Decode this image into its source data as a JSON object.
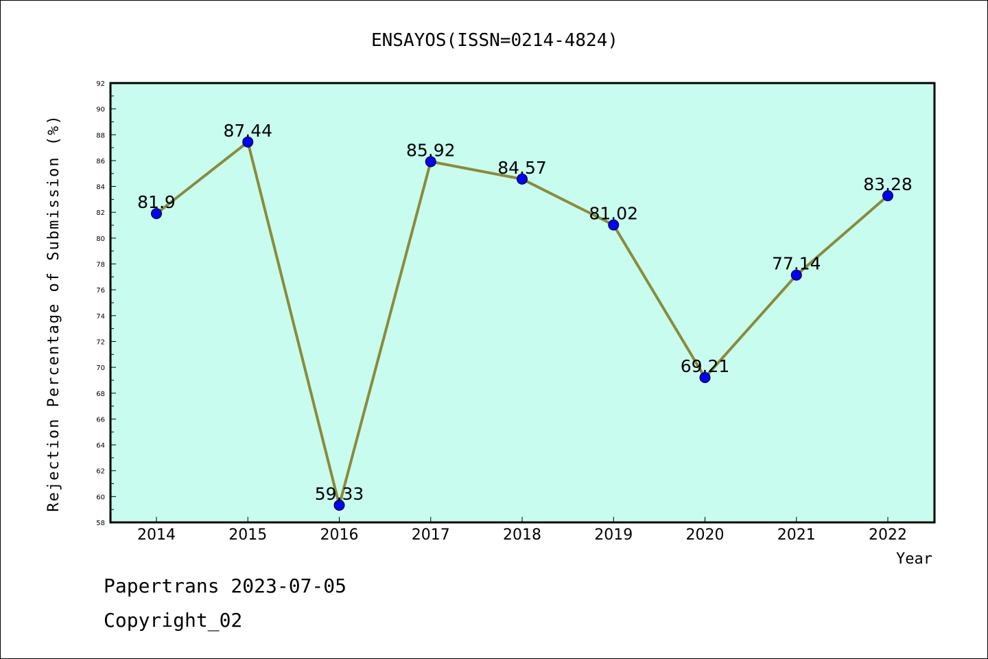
{
  "chart_data": {
    "type": "line",
    "title": "ENSAYOS(ISSN=0214-4824)",
    "xlabel": "Year",
    "ylabel": "Rejection Percentage of Submission (%)",
    "categories": [
      "2014",
      "2015",
      "2016",
      "2017",
      "2018",
      "2019",
      "2020",
      "2021",
      "2022"
    ],
    "values": [
      81.9,
      87.44,
      59.33,
      85.92,
      84.57,
      81.02,
      69.21,
      77.14,
      83.28
    ],
    "data_labels": [
      "81.9",
      "87.44",
      "59.33",
      "85.92",
      "84.57",
      "81.02",
      "69.21",
      "77.14",
      "83.28"
    ],
    "ylim": [
      58,
      92
    ],
    "yticks": [
      58,
      60,
      62,
      64,
      66,
      68,
      70,
      72,
      74,
      76,
      78,
      80,
      82,
      84,
      86,
      88,
      90,
      92
    ],
    "grid": false,
    "colors": {
      "plot_background": "#c8fcee",
      "line": "#8b8b3a",
      "marker": "#0000ff"
    }
  },
  "footer": {
    "line1": "Papertrans 2023-07-05",
    "line2": "Copyright_02"
  }
}
